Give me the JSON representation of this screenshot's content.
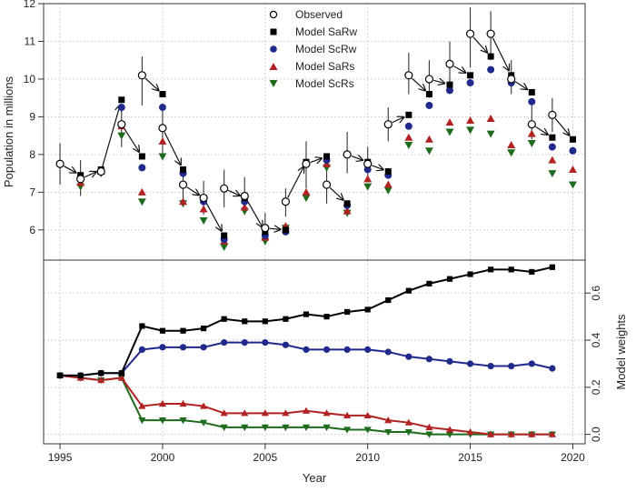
{
  "chart_data": [
    {
      "type": "scatter",
      "ylabel": "Population in millions",
      "ylim": [
        5.2,
        12
      ],
      "yticks": [
        6,
        7,
        8,
        9,
        10,
        11,
        12
      ],
      "xlim": [
        1994.2,
        2020.6
      ],
      "grid": true,
      "legend_position": "top-center",
      "legend": [
        {
          "name": "Observed",
          "marker": "open-circle",
          "color": "#000000"
        },
        {
          "name": "Model SaRw",
          "marker": "square",
          "color": "#000000"
        },
        {
          "name": "Model ScRw",
          "marker": "circle",
          "color": "#1f2a8c"
        },
        {
          "name": "Model SaRs",
          "marker": "triangle-up",
          "color": "#b22222"
        },
        {
          "name": "Model ScRs",
          "marker": "triangle-down",
          "color": "#1e6b1e"
        }
      ],
      "observed": {
        "x": [
          1995,
          1996,
          1997,
          1998,
          1999,
          2000,
          2001,
          2002,
          2003,
          2004,
          2005,
          2006,
          2007,
          2008,
          2009,
          2010,
          2011,
          2012,
          2013,
          2014,
          2015,
          2016,
          2017,
          2018,
          2019
        ],
        "y": [
          7.75,
          7.35,
          7.55,
          8.8,
          10.1,
          8.7,
          7.2,
          6.85,
          7.1,
          6.9,
          6.05,
          6.75,
          7.75,
          7.2,
          8.0,
          7.75,
          8.8,
          10.1,
          10.0,
          10.4,
          11.2,
          11.2,
          10.0,
          8.8,
          9.05
        ],
        "err_low": [
          7.2,
          6.9,
          7.45,
          8.2,
          9.3,
          7.9,
          6.8,
          6.4,
          6.6,
          6.4,
          5.7,
          6.35,
          7.1,
          6.7,
          7.5,
          7.3,
          8.35,
          9.6,
          9.5,
          9.8,
          10.3,
          10.5,
          9.6,
          8.4,
          8.6
        ],
        "err_high": [
          8.3,
          7.85,
          7.65,
          9.35,
          10.6,
          9.2,
          7.6,
          7.3,
          7.6,
          7.4,
          6.45,
          7.1,
          8.35,
          7.8,
          8.6,
          8.2,
          9.25,
          10.7,
          10.5,
          11.0,
          11.9,
          11.8,
          10.5,
          9.3,
          9.5
        ]
      },
      "series": [
        {
          "name": "Model SaRw",
          "x": [
            1996,
            1997,
            1998,
            1999,
            2000,
            2001,
            2002,
            2003,
            2004,
            2005,
            2006,
            2007,
            2008,
            2009,
            2010,
            2011,
            2012,
            2013,
            2014,
            2015,
            2016,
            2017,
            2018,
            2019,
            2020
          ],
          "values": [
            7.45,
            7.6,
            9.45,
            7.95,
            9.6,
            7.6,
            6.85,
            5.85,
            6.85,
            5.95,
            6.0,
            7.8,
            7.95,
            6.7,
            7.8,
            7.55,
            9.05,
            9.6,
            9.85,
            10.1,
            10.6,
            10.1,
            9.65,
            8.45,
            8.4
          ]
        },
        {
          "name": "Model ScRw",
          "x": [
            1996,
            1997,
            1998,
            1999,
            2000,
            2001,
            2002,
            2003,
            2004,
            2005,
            2006,
            2007,
            2008,
            2009,
            2010,
            2011,
            2012,
            2013,
            2014,
            2015,
            2016,
            2017,
            2018,
            2019,
            2020
          ],
          "values": [
            7.4,
            7.55,
            9.25,
            7.65,
            9.25,
            7.5,
            6.75,
            5.75,
            6.75,
            5.85,
            5.95,
            7.75,
            7.85,
            6.65,
            7.6,
            7.45,
            8.75,
            9.3,
            9.7,
            9.9,
            10.25,
            9.9,
            9.4,
            8.2,
            8.1
          ]
        },
        {
          "name": "Model SaRs",
          "x": [
            1996,
            1997,
            1998,
            1999,
            2000,
            2001,
            2002,
            2003,
            2004,
            2005,
            2006,
            2007,
            2008,
            2009,
            2010,
            2011,
            2012,
            2013,
            2014,
            2015,
            2016,
            2017,
            2018,
            2019,
            2020
          ],
          "values": [
            7.25,
            7.55,
            8.75,
            7.0,
            8.35,
            6.75,
            6.55,
            5.7,
            6.6,
            5.8,
            6.1,
            7.0,
            7.75,
            6.5,
            7.35,
            7.2,
            8.45,
            8.4,
            8.85,
            8.9,
            8.95,
            8.25,
            8.55,
            7.85,
            7.6
          ]
        },
        {
          "name": "Model ScRs",
          "x": [
            1996,
            1997,
            1998,
            1999,
            2000,
            2001,
            2002,
            2003,
            2004,
            2005,
            2006,
            2007,
            2008,
            2009,
            2010,
            2011,
            2012,
            2013,
            2014,
            2015,
            2016,
            2017,
            2018,
            2019,
            2020
          ],
          "values": [
            7.15,
            7.5,
            8.5,
            6.75,
            7.95,
            6.7,
            6.25,
            5.55,
            6.5,
            5.7,
            6.05,
            6.85,
            7.65,
            6.45,
            7.15,
            7.05,
            8.25,
            8.1,
            8.6,
            8.65,
            8.55,
            8.05,
            8.3,
            7.5,
            7.2
          ]
        }
      ]
    },
    {
      "type": "line",
      "xlabel": "Year",
      "ylabel": "Model weights",
      "ylim": [
        -0.04,
        0.74
      ],
      "yticks": [
        "0.0",
        "0.2",
        "0.4",
        "0.6"
      ],
      "yticks_values": [
        0,
        0.2,
        0.4,
        0.6
      ],
      "xticks": [
        "1995",
        "2000",
        "2005",
        "2010",
        "2015",
        "2020"
      ],
      "xticks_values": [
        1995,
        2000,
        2005,
        2010,
        2015,
        2020
      ],
      "xlim": [
        1994.2,
        2020.6
      ],
      "grid": true,
      "x": [
        1995,
        1996,
        1997,
        1998,
        1999,
        2000,
        2001,
        2002,
        2003,
        2004,
        2005,
        2006,
        2007,
        2008,
        2009,
        2010,
        2011,
        2012,
        2013,
        2014,
        2015,
        2016,
        2017,
        2018,
        2019
      ],
      "series": [
        {
          "name": "Model SaRw",
          "color": "#000000",
          "marker": "square",
          "values": [
            0.25,
            0.25,
            0.26,
            0.26,
            0.46,
            0.44,
            0.44,
            0.45,
            0.49,
            0.48,
            0.48,
            0.49,
            0.51,
            0.5,
            0.52,
            0.53,
            0.57,
            0.61,
            0.64,
            0.66,
            0.68,
            0.7,
            0.7,
            0.69,
            0.71
          ]
        },
        {
          "name": "Model ScRw",
          "color": "#1f2a8c",
          "marker": "circle",
          "values": [
            0.25,
            0.25,
            0.26,
            0.26,
            0.36,
            0.37,
            0.37,
            0.37,
            0.39,
            0.39,
            0.39,
            0.38,
            0.36,
            0.36,
            0.36,
            0.36,
            0.35,
            0.33,
            0.32,
            0.31,
            0.3,
            0.29,
            0.29,
            0.3,
            0.28
          ]
        },
        {
          "name": "Model SaRs",
          "color": "#b22222",
          "marker": "triangle-up",
          "values": [
            0.25,
            0.24,
            0.23,
            0.24,
            0.12,
            0.13,
            0.13,
            0.12,
            0.09,
            0.09,
            0.09,
            0.09,
            0.1,
            0.09,
            0.08,
            0.08,
            0.06,
            0.05,
            0.03,
            0.02,
            0.01,
            0.0,
            0.0,
            0.0,
            0.0
          ]
        },
        {
          "name": "Model ScRs",
          "color": "#1e6b1e",
          "marker": "triangle-down",
          "values": [
            0.25,
            0.24,
            0.23,
            0.24,
            0.06,
            0.06,
            0.06,
            0.05,
            0.03,
            0.03,
            0.03,
            0.03,
            0.03,
            0.03,
            0.02,
            0.02,
            0.01,
            0.01,
            0.0,
            0.0,
            0.0,
            0.0,
            0.0,
            0.0,
            0.0
          ]
        }
      ]
    }
  ]
}
